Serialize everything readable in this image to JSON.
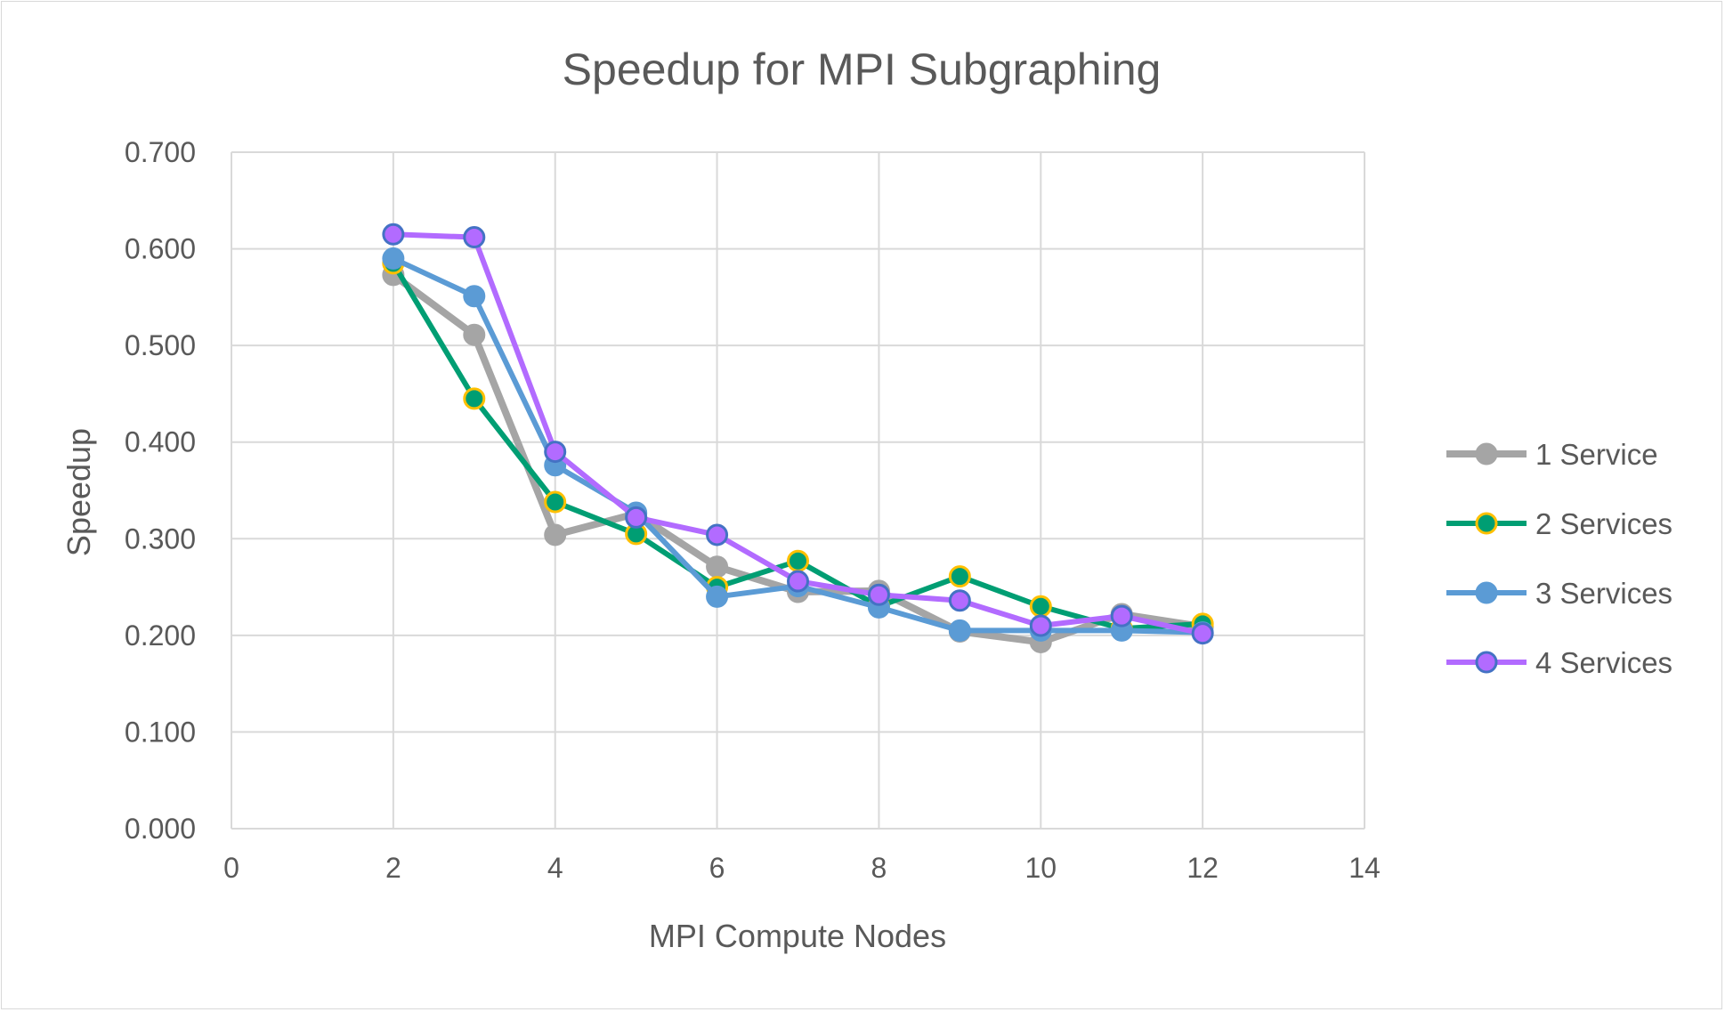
{
  "chart_data": {
    "type": "line",
    "title": "Speedup for MPI Subgraphing",
    "xlabel": "MPI Compute Nodes",
    "ylabel": "Speedup",
    "xlim": [
      0,
      14
    ],
    "ylim": [
      0,
      0.7
    ],
    "xticks": [
      "0",
      "2",
      "4",
      "6",
      "8",
      "10",
      "12",
      "14"
    ],
    "yticks": [
      "0.000",
      "0.100",
      "0.200",
      "0.300",
      "0.400",
      "0.500",
      "0.600",
      "0.700"
    ],
    "grid": true,
    "legend_position": "right",
    "x": [
      2,
      3,
      4,
      5,
      6,
      7,
      8,
      9,
      10,
      11,
      12
    ],
    "series": [
      {
        "name": "1 Service",
        "color": "#a5a5a5",
        "marker_edge": "#a5a5a5",
        "values": [
          0.573,
          0.511,
          0.304,
          0.326,
          0.271,
          0.245,
          0.246,
          0.204,
          0.193,
          0.222,
          0.209
        ]
      },
      {
        "name": "2 Services",
        "color": "#009e73",
        "marker_edge": "#ffc000",
        "values": [
          0.585,
          0.445,
          0.338,
          0.305,
          0.25,
          0.277,
          0.23,
          0.261,
          0.23,
          0.207,
          0.212
        ]
      },
      {
        "name": "3 Services",
        "color": "#5b9bd5",
        "marker_edge": "#5b9bd5",
        "values": [
          0.59,
          0.551,
          0.376,
          0.327,
          0.24,
          0.251,
          0.229,
          0.205,
          0.205,
          0.205,
          0.203
        ]
      },
      {
        "name": "4 Services",
        "color": "#b26bff",
        "marker_edge": "#4472c4",
        "values": [
          0.615,
          0.612,
          0.39,
          0.322,
          0.304,
          0.256,
          0.242,
          0.236,
          0.21,
          0.22,
          0.202
        ]
      }
    ]
  }
}
